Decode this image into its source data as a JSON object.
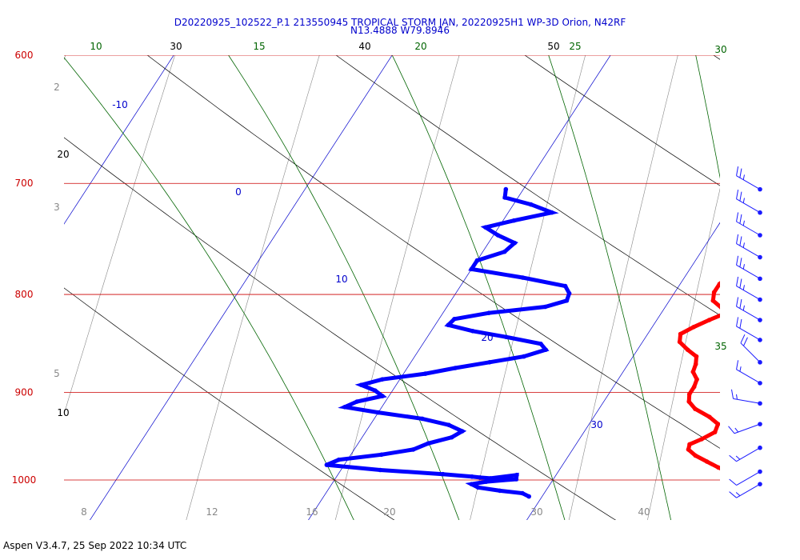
{
  "title_line1": "D20220925_102522_P.1 213550945 TROPICAL STORM JAN, 20220925H1 WP-3D Orion, N42RF",
  "title_line2": "N13.4888 W79.8946",
  "footer": "Aspen V3.4.7, 25 Sep 2022  10:34 UTC",
  "colors": {
    "isobar": "#cc0000",
    "isotherm": "#0000cc",
    "dry_adiabat": "#000000",
    "moist_adiabat": "#006400",
    "mixing_ratio": "#888888",
    "temperature": "#ff0000",
    "dewpoint": "#0000ff",
    "wind": "#1a1aff"
  },
  "chart_data": {
    "type": "line",
    "axes": {
      "y": "pressure (hPa)",
      "scale": "log"
    },
    "pressure_labels": [
      "600",
      "700",
      "800",
      "900",
      "1000"
    ],
    "isotherm_labels": [
      "-10",
      "0",
      "10",
      "20",
      "30"
    ],
    "dry_adiabat_labels": [
      "20",
      "30",
      "40",
      "50",
      "10"
    ],
    "moist_adiabat_labels": [
      "10",
      "15",
      "20",
      "25",
      "30",
      "35"
    ],
    "mixing_ratio_top_labels": [
      "2",
      "3",
      "5"
    ],
    "mixing_ratio_bottom_labels": [
      "8",
      "12",
      "16",
      "20",
      "30",
      "40"
    ],
    "series": [
      {
        "name": "",
        "values": [
          [
            25.6,
            705
          ],
          [
            25.2,
            708
          ],
          [
            24.6,
            712
          ],
          [
            24.4,
            717
          ],
          [
            24.3,
            725
          ],
          [
            24.2,
            733
          ],
          [
            23.8,
            740
          ],
          [
            23.6,
            748
          ],
          [
            23.9,
            755
          ],
          [
            24.1,
            762
          ],
          [
            23.5,
            769
          ],
          [
            22.6,
            776
          ],
          [
            22.0,
            782
          ],
          [
            21.8,
            790
          ],
          [
            21.8,
            798
          ],
          [
            22.0,
            806
          ],
          [
            22.6,
            813
          ],
          [
            22.9,
            819
          ],
          [
            22.4,
            825
          ],
          [
            21.9,
            832
          ],
          [
            21.5,
            839
          ],
          [
            21.7,
            847
          ],
          [
            22.3,
            855
          ],
          [
            22.9,
            862
          ],
          [
            23.1,
            870
          ],
          [
            23.2,
            878
          ],
          [
            23.6,
            886
          ],
          [
            23.7,
            894
          ],
          [
            23.7,
            902
          ],
          [
            23.9,
            910
          ],
          [
            24.4,
            918
          ],
          [
            25.3,
            927
          ],
          [
            25.9,
            935
          ],
          [
            26.0,
            944
          ],
          [
            25.6,
            952
          ],
          [
            25.2,
            958
          ],
          [
            25.3,
            964
          ],
          [
            25.8,
            971
          ],
          [
            26.5,
            978
          ],
          [
            27.2,
            985
          ],
          [
            28.3,
            995
          ],
          [
            28.8,
            1000
          ]
        ]
      },
      {
        "name": "",
        "values": [
          [
            9.2,
            705
          ],
          [
            9.4,
            712
          ],
          [
            10.8,
            718
          ],
          [
            12.0,
            725
          ],
          [
            10.5,
            732
          ],
          [
            9.4,
            738
          ],
          [
            10.2,
            745
          ],
          [
            11.2,
            752
          ],
          [
            11.0,
            760
          ],
          [
            10.0,
            768
          ],
          [
            10.0,
            776
          ],
          [
            12.6,
            784
          ],
          [
            14.8,
            792
          ],
          [
            15.2,
            799
          ],
          [
            15.3,
            806
          ],
          [
            14.5,
            812
          ],
          [
            12.1,
            818
          ],
          [
            10.7,
            824
          ],
          [
            10.6,
            830
          ],
          [
            11.9,
            836
          ],
          [
            13.6,
            842
          ],
          [
            15.4,
            849
          ],
          [
            15.8,
            855
          ],
          [
            15.0,
            862
          ],
          [
            13.6,
            868
          ],
          [
            12.2,
            874
          ],
          [
            11.0,
            880
          ],
          [
            9.2,
            886
          ],
          [
            8.4,
            892
          ],
          [
            9.2,
            898
          ],
          [
            9.7,
            904
          ],
          [
            8.7,
            910
          ],
          [
            8.3,
            916
          ],
          [
            10.0,
            922
          ],
          [
            12.2,
            929
          ],
          [
            13.6,
            936
          ],
          [
            14.4,
            943
          ],
          [
            14.1,
            950
          ],
          [
            13.2,
            957
          ],
          [
            12.7,
            964
          ],
          [
            11.4,
            970
          ],
          [
            9.6,
            976
          ],
          [
            9.2,
            982
          ],
          [
            11.8,
            988
          ],
          [
            14.8,
            993
          ],
          [
            16.2,
            996
          ],
          [
            16.6,
            997
          ],
          [
            17.1,
            998
          ],
          [
            18.2,
            994
          ],
          [
            18.3,
            999
          ],
          [
            17.0,
            1002
          ],
          [
            16.4,
            1005
          ],
          [
            16.8,
            1009
          ],
          [
            17.9,
            1013
          ],
          [
            19.0,
            1016
          ],
          [
            19.4,
            1020
          ]
        ]
      }
    ],
    "winds": [
      {
        "pressure": 705,
        "dir": 300,
        "speed": 25
      },
      {
        "pressure": 725,
        "dir": 300,
        "speed": 25
      },
      {
        "pressure": 745,
        "dir": 300,
        "speed": 25
      },
      {
        "pressure": 765,
        "dir": 300,
        "speed": 25
      },
      {
        "pressure": 785,
        "dir": 300,
        "speed": 25
      },
      {
        "pressure": 805,
        "dir": 300,
        "speed": 25
      },
      {
        "pressure": 825,
        "dir": 300,
        "speed": 25
      },
      {
        "pressure": 845,
        "dir": 300,
        "speed": 20
      },
      {
        "pressure": 868,
        "dir": 315,
        "speed": 20
      },
      {
        "pressure": 890,
        "dir": 300,
        "speed": 15
      },
      {
        "pressure": 912,
        "dir": 280,
        "speed": 15
      },
      {
        "pressure": 935,
        "dir": 250,
        "speed": 15
      },
      {
        "pressure": 962,
        "dir": 240,
        "speed": 15
      },
      {
        "pressure": 990,
        "dir": 240,
        "speed": 10
      },
      {
        "pressure": 1005,
        "dir": 240,
        "speed": 15
      }
    ]
  }
}
